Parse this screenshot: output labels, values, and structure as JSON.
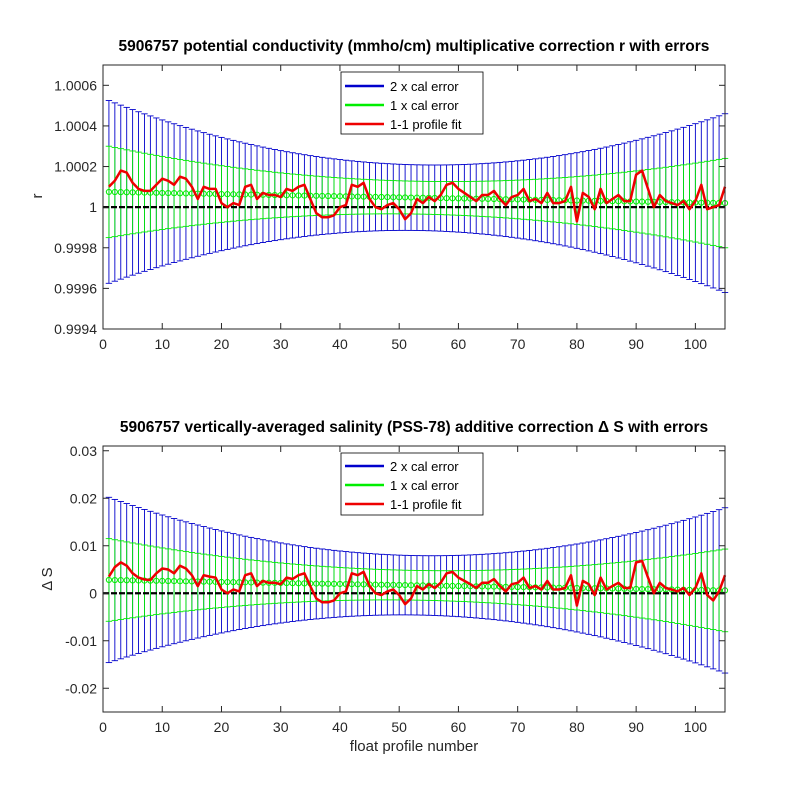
{
  "chart_data": [
    {
      "type": "line",
      "title": "5906757 potential conductivity (mmho/cm) multiplicative correction r with errors",
      "xlabel": "",
      "ylabel": "r",
      "xlim": [
        0,
        105
      ],
      "ylim": [
        0.9994,
        1.0007
      ],
      "xticks": [
        "0",
        "10",
        "20",
        "30",
        "40",
        "50",
        "60",
        "70",
        "80",
        "90",
        "100"
      ],
      "yticks": [
        "0.9994",
        "0.9996",
        "0.9998",
        "1",
        "1.0002",
        "1.0004",
        "1.0006"
      ],
      "reference_line": 1,
      "legend_position": "top-center",
      "colors": {
        "two_sigma": "#0000cc",
        "one_sigma": "#00ee00",
        "fit": "#ee0000",
        "reference": "#000000"
      },
      "fit_center": {
        "x": [
          1,
          47,
          105
        ],
        "y": [
          1.000075,
          1.00005,
          1.00002
        ]
      },
      "error_halfwidth_1x": {
        "x": [
          1,
          47,
          105
        ],
        "y": [
          0.000225,
          8.3e-05,
          0.00022
        ]
      },
      "series": [
        {
          "name": "1-1 profile fit",
          "x": [
            1,
            2,
            3,
            4,
            5,
            6,
            7,
            8,
            9,
            10,
            11,
            12,
            13,
            14,
            15,
            16,
            17,
            18,
            19,
            20,
            21,
            22,
            23,
            24,
            25,
            26,
            27,
            28,
            29,
            30,
            31,
            32,
            33,
            34,
            35,
            36,
            37,
            38,
            39,
            40,
            41,
            42,
            43,
            44,
            45,
            46,
            47,
            48,
            49,
            50,
            51,
            52,
            53,
            54,
            55,
            56,
            57,
            58,
            59,
            60,
            61,
            62,
            63,
            64,
            65,
            66,
            67,
            68,
            69,
            70,
            71,
            72,
            73,
            74,
            75,
            76,
            77,
            78,
            79,
            80,
            81,
            82,
            83,
            84,
            85,
            86,
            87,
            88,
            89,
            90,
            91,
            92,
            93,
            94,
            95,
            96,
            97,
            98,
            99,
            100,
            101,
            102,
            103,
            104,
            105
          ],
          "y": [
            1.0001,
            1.00013,
            1.00018,
            1.00017,
            1.00012,
            1.00009,
            1.00008,
            1.00008,
            1.00011,
            1.00014,
            1.00013,
            1.00011,
            1.00015,
            1.00014,
            1.0001,
            1.00004,
            1.0001,
            1.00009,
            1.00009,
            1.00002,
            1.0,
            1.00002,
            1.00001,
            1.0001,
            1.00011,
            1.00004,
            1.00007,
            1.00006,
            1.00006,
            1.00005,
            1.00009,
            1.00008,
            1.0001,
            1.00011,
            1.00004,
            0.99997,
            0.99995,
            0.99995,
            0.99996,
            1.0,
            1.00001,
            1.00011,
            1.0001,
            1.00012,
            1.00004,
            1.0,
            0.99999,
            1.00001,
            1.00002,
            0.99999,
            0.99994,
            0.99997,
            1.00004,
            1.00002,
            1.00005,
            1.00003,
            1.00006,
            1.00011,
            1.00012,
            1.00009,
            1.00007,
            1.00005,
            1.00003,
            1.00006,
            1.00006,
            1.00008,
            1.00004,
            1.00001,
            1.00005,
            1.00006,
            1.00009,
            1.00003,
            1.00004,
            1.00002,
            1.00007,
            1.00002,
            1.00002,
            1.00003,
            1.0001,
            0.99993,
            1.00007,
            1.00005,
            0.99999,
            1.00009,
            1.00002,
            1.00004,
            1.00006,
            1.00003,
            1.00003,
            1.00016,
            1.00018,
            1.00009,
            1.0,
            1.00006,
            1.00003,
            1.00002,
            1.00001,
            1.00003,
            0.99999,
            1.00003,
            1.00011,
            0.99999,
            1.0,
            1.00001,
            1.0001
          ]
        },
        {
          "name": "2 x cal error"
        },
        {
          "name": "1 x cal error"
        }
      ]
    },
    {
      "type": "line",
      "title": "5906757 vertically-averaged salinity (PSS-78) additive correction Δ S with errors",
      "xlabel": "float profile number",
      "ylabel": "Δ S",
      "xlim": [
        0,
        105
      ],
      "ylim": [
        -0.025,
        0.031
      ],
      "xticks": [
        "0",
        "10",
        "20",
        "30",
        "40",
        "50",
        "60",
        "70",
        "80",
        "90",
        "100"
      ],
      "yticks": [
        "-0.02",
        "-0.01",
        "0",
        "0.01",
        "0.02",
        "0.03"
      ],
      "reference_line": 0,
      "legend_position": "top-center",
      "colors": {
        "two_sigma": "#0000cc",
        "one_sigma": "#00ee00",
        "fit": "#ee0000",
        "reference": "#000000"
      },
      "fit_center": {
        "x": [
          1,
          47,
          105
        ],
        "y": [
          0.0028,
          0.0018,
          0.0006
        ]
      },
      "error_halfwidth_1x": {
        "x": [
          1,
          47,
          105
        ],
        "y": [
          0.0087,
          0.0032,
          0.0087
        ]
      },
      "series": [
        {
          "name": "1-1 profile fit",
          "x": [
            1,
            2,
            3,
            4,
            5,
            6,
            7,
            8,
            9,
            10,
            11,
            12,
            13,
            14,
            15,
            16,
            17,
            18,
            19,
            20,
            21,
            22,
            23,
            24,
            25,
            26,
            27,
            28,
            29,
            30,
            31,
            32,
            33,
            34,
            35,
            36,
            37,
            38,
            39,
            40,
            41,
            42,
            43,
            44,
            45,
            46,
            47,
            48,
            49,
            50,
            51,
            52,
            53,
            54,
            55,
            56,
            57,
            58,
            59,
            60,
            61,
            62,
            63,
            64,
            65,
            66,
            67,
            68,
            69,
            70,
            71,
            72,
            73,
            74,
            75,
            76,
            77,
            78,
            79,
            80,
            81,
            82,
            83,
            84,
            85,
            86,
            87,
            88,
            89,
            90,
            91,
            92,
            93,
            94,
            95,
            96,
            97,
            98,
            99,
            100,
            101,
            102,
            103,
            104,
            105
          ],
          "y": [
            0.0035,
            0.0055,
            0.0065,
            0.0058,
            0.0042,
            0.0033,
            0.0029,
            0.0028,
            0.0042,
            0.0052,
            0.005,
            0.0042,
            0.0058,
            0.0052,
            0.0038,
            0.0015,
            0.0038,
            0.0035,
            0.0033,
            0.0008,
            0.0,
            0.0008,
            0.0004,
            0.0038,
            0.0042,
            0.0015,
            0.0026,
            0.0022,
            0.0022,
            0.0019,
            0.0033,
            0.003,
            0.0038,
            0.0042,
            0.0015,
            -0.0011,
            -0.0019,
            -0.0019,
            -0.0015,
            0.0,
            0.0004,
            0.0042,
            0.0038,
            0.0045,
            0.0015,
            0.0,
            -0.0004,
            0.0004,
            0.0008,
            -0.0004,
            -0.0023,
            -0.0011,
            0.0015,
            0.0008,
            0.0019,
            0.0011,
            0.0022,
            0.0042,
            0.0045,
            0.0033,
            0.0026,
            0.0019,
            0.0011,
            0.0022,
            0.0022,
            0.003,
            0.0015,
            0.0004,
            0.0019,
            0.0022,
            0.0033,
            0.0011,
            0.0015,
            0.0008,
            0.0026,
            0.0008,
            0.0008,
            0.0011,
            0.0038,
            -0.0026,
            0.0026,
            0.0019,
            -0.0004,
            0.0033,
            0.0008,
            0.0015,
            0.0022,
            0.0011,
            0.0011,
            0.0065,
            0.0068,
            0.0033,
            0.0,
            0.0022,
            0.0011,
            0.0008,
            0.0004,
            0.0011,
            -0.0004,
            0.0011,
            0.0042,
            -0.0004,
            -0.0015,
            0.0004,
            0.0038
          ]
        },
        {
          "name": "2 x cal error"
        },
        {
          "name": "1 x cal error"
        }
      ]
    }
  ]
}
